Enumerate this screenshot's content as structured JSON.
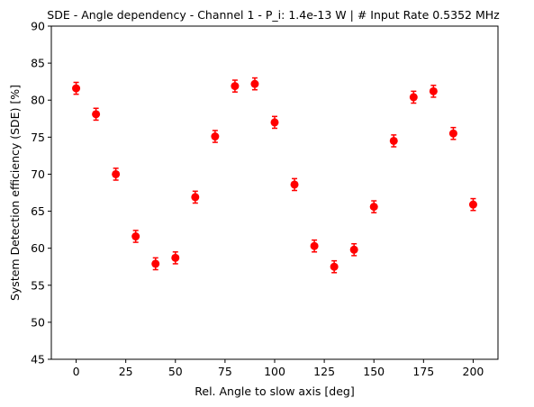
{
  "chart_data": {
    "type": "scatter",
    "title": "SDE - Angle dependency - Channel 1 - P_i: 1.4e-13 W | # Input Rate 0.5352 MHz",
    "xlabel": "Rel. Angle to slow axis [deg]",
    "ylabel": "System Detection efficiency (SDE) [%]",
    "xlim": [
      -12.5,
      212.5
    ],
    "ylim": [
      45,
      90
    ],
    "xticks": [
      0,
      25,
      50,
      75,
      100,
      125,
      150,
      175,
      200
    ],
    "yticks": [
      45,
      50,
      55,
      60,
      65,
      70,
      75,
      80,
      85,
      90
    ],
    "grid": false,
    "marker_color": "#ff0000",
    "series": [
      {
        "x": [
          0,
          10,
          20,
          30,
          40,
          50,
          60,
          70,
          80,
          90,
          100,
          110,
          120,
          130,
          140,
          150,
          160,
          170,
          180,
          190,
          200
        ],
        "y": [
          81.6,
          78.1,
          70.0,
          61.6,
          57.9,
          58.7,
          66.9,
          75.1,
          81.9,
          82.2,
          77.0,
          68.6,
          60.3,
          57.5,
          59.8,
          65.6,
          74.5,
          80.4,
          81.2,
          75.5,
          65.9
        ],
        "yerr": [
          0.8,
          0.8,
          0.8,
          0.8,
          0.8,
          0.8,
          0.8,
          0.8,
          0.8,
          0.8,
          0.8,
          0.8,
          0.8,
          0.8,
          0.8,
          0.8,
          0.8,
          0.8,
          0.8,
          0.8,
          0.8
        ]
      }
    ]
  }
}
